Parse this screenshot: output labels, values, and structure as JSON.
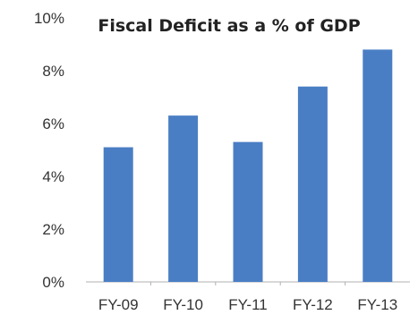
{
  "chart_data": {
    "type": "bar",
    "title": "Fiscal Deficit as a % of GDP",
    "xlabel": "",
    "ylabel": "",
    "categories": [
      "FY-09",
      "FY-10",
      "FY-11",
      "FY-12",
      "FY-13"
    ],
    "values": [
      5.1,
      6.3,
      5.3,
      7.4,
      8.8
    ],
    "ylim": [
      0,
      10
    ],
    "yticks": [
      0,
      2,
      4,
      6,
      8,
      10
    ],
    "ytick_labels": [
      "0%",
      "2%",
      "4%",
      "6%",
      "8%",
      "10%"
    ],
    "grid": false,
    "legend": "none",
    "bar_color": "#4a7ec4"
  }
}
